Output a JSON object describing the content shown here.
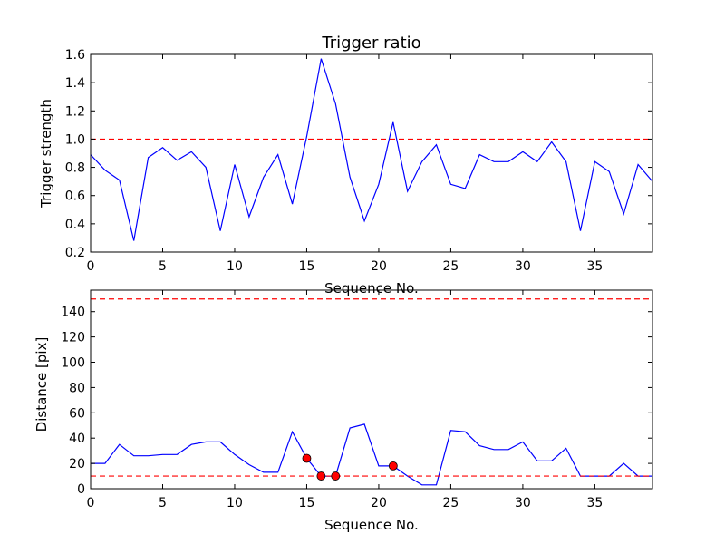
{
  "chart_data": [
    {
      "type": "line",
      "title": "Trigger ratio",
      "xlabel": "Sequence No.",
      "ylabel": "Trigger strength",
      "xlim": [
        0,
        39
      ],
      "ylim": [
        0.2,
        1.6
      ],
      "xticks": [
        0,
        5,
        10,
        15,
        20,
        25,
        30,
        35
      ],
      "yticks": [
        0.2,
        0.4,
        0.6,
        0.8,
        1.0,
        1.2,
        1.4,
        1.6
      ],
      "ytick_labels": [
        "0.2",
        "0.4",
        "0.6",
        "0.8",
        "1.0",
        "1.2",
        "1.4",
        "1.6"
      ],
      "grid": false,
      "series": [
        {
          "color": "#0000ff",
          "x": [
            0,
            1,
            2,
            3,
            4,
            5,
            6,
            7,
            8,
            9,
            10,
            11,
            12,
            13,
            14,
            15,
            16,
            17,
            18,
            19,
            20,
            21,
            22,
            23,
            24,
            25,
            26,
            27,
            28,
            29,
            30,
            31,
            32,
            33,
            34,
            35,
            36,
            37,
            38,
            39
          ],
          "values": [
            0.89,
            0.78,
            0.71,
            0.28,
            0.87,
            0.94,
            0.85,
            0.91,
            0.8,
            0.35,
            0.82,
            0.45,
            0.73,
            0.89,
            0.54,
            1.02,
            1.57,
            1.25,
            0.73,
            0.42,
            0.68,
            1.12,
            0.63,
            0.84,
            0.96,
            0.68,
            0.65,
            0.89,
            0.84,
            0.84,
            0.91,
            0.84,
            0.98,
            0.84,
            0.35,
            0.84,
            0.77,
            0.47,
            0.82,
            0.7
          ]
        }
      ],
      "hlines": [
        {
          "y": 1.0,
          "color": "#ff0000",
          "style": "dashed"
        }
      ]
    },
    {
      "type": "line",
      "title": "",
      "xlabel": "Sequence No.",
      "ylabel": "Distance [pix]",
      "xlim": [
        0,
        39
      ],
      "ylim": [
        0,
        157
      ],
      "xticks": [
        0,
        5,
        10,
        15,
        20,
        25,
        30,
        35
      ],
      "yticks": [
        0,
        20,
        40,
        60,
        80,
        100,
        120,
        140
      ],
      "ytick_labels": [
        "0",
        "20",
        "40",
        "60",
        "80",
        "100",
        "120",
        "140"
      ],
      "grid": false,
      "series": [
        {
          "color": "#0000ff",
          "x": [
            0,
            1,
            2,
            3,
            4,
            5,
            6,
            7,
            8,
            9,
            10,
            11,
            12,
            13,
            14,
            15,
            16,
            17,
            18,
            19,
            20,
            21,
            22,
            23,
            24,
            25,
            26,
            27,
            28,
            29,
            30,
            31,
            32,
            33,
            34,
            35,
            36,
            37,
            38,
            39
          ],
          "values": [
            20,
            20,
            35,
            26,
            26,
            27,
            27,
            35,
            37,
            37,
            27,
            19,
            13,
            13,
            45,
            24,
            10,
            10,
            48,
            51,
            18,
            18,
            10,
            3,
            3,
            46,
            45,
            34,
            31,
            31,
            37,
            22,
            22,
            32,
            10,
            10,
            10,
            20,
            10,
            10
          ]
        }
      ],
      "markers": {
        "color": "#ff0000",
        "x": [
          15,
          16,
          17,
          21
        ],
        "values": [
          24,
          10,
          10,
          18
        ]
      },
      "hlines": [
        {
          "y": 150,
          "color": "#ff0000",
          "style": "dashed"
        },
        {
          "y": 10,
          "color": "#ff0000",
          "style": "dashed"
        }
      ]
    }
  ]
}
